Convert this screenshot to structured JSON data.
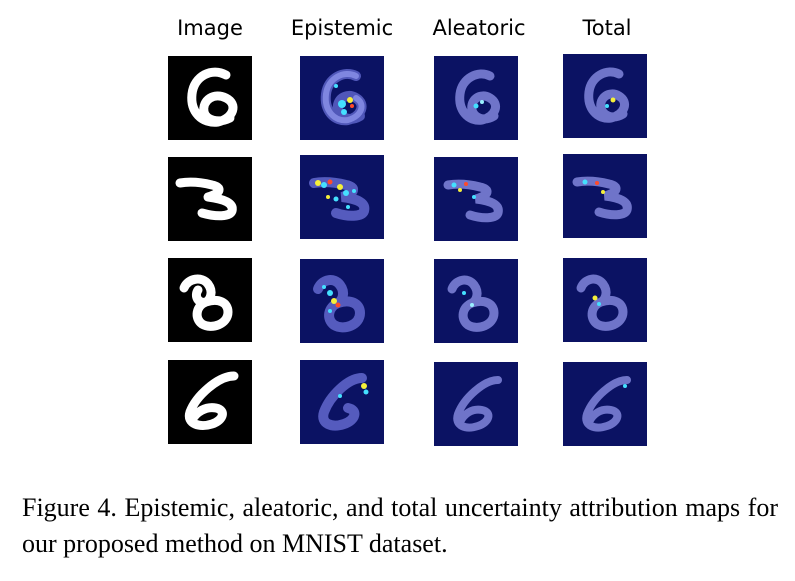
{
  "figure": {
    "column_headers": [
      "Image",
      "Epistemic",
      "Aleatoric",
      "Total"
    ],
    "rows": [
      {
        "digit": "6",
        "tiles": [
          "image",
          "epistemic",
          "aleatoric",
          "total"
        ]
      },
      {
        "digit": "3",
        "tiles": [
          "image",
          "epistemic",
          "aleatoric",
          "total"
        ]
      },
      {
        "digit": "8",
        "tiles": [
          "image",
          "epistemic",
          "aleatoric",
          "total"
        ]
      },
      {
        "digit": "6",
        "tiles": [
          "image",
          "epistemic",
          "aleatoric",
          "total"
        ]
      }
    ],
    "colors": {
      "image_background": "#000000",
      "image_stroke": "#ffffff",
      "map_background": "#0b1263",
      "map_stroke": "#6f74c9",
      "hot_cyan": "#44e0ff",
      "hot_yellow": "#f5ef3a",
      "hot_red": "#ff4a2a"
    }
  },
  "caption": {
    "text": "Figure 4.  Epistemic, aleatoric, and total uncertainty attribution maps for our proposed method on MNIST dataset."
  }
}
